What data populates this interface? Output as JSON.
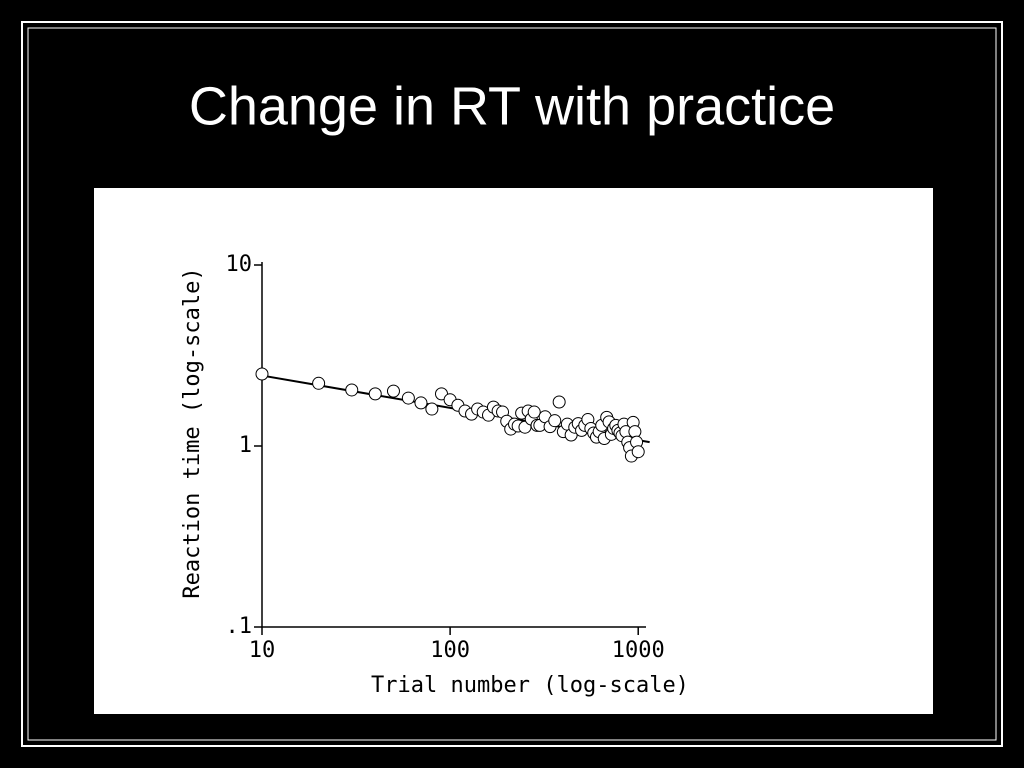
{
  "chart_data": {
    "type": "scatter",
    "title": "Change in RT with practice",
    "x_label": "Trial number (log-scale)",
    "y_label": "Reaction time (log-scale)",
    "xscale": "log",
    "yscale": "log",
    "xlim": [
      10,
      1100
    ],
    "ylim": [
      0.1,
      10
    ],
    "xticks": [
      10,
      100,
      1000
    ],
    "yticks": [
      {
        "value": 0.1,
        "label": ".1"
      },
      1,
      10
    ],
    "x": [
      10,
      20,
      30,
      40,
      50,
      60,
      70,
      80,
      90,
      100,
      110,
      120,
      130,
      140,
      150,
      160,
      170,
      180,
      190,
      200,
      210,
      220,
      230,
      240,
      250,
      260,
      270,
      280,
      290,
      300,
      320,
      340,
      360,
      380,
      400,
      420,
      440,
      460,
      480,
      500,
      520,
      540,
      560,
      580,
      600,
      620,
      640,
      660,
      680,
      700,
      720,
      740,
      760,
      780,
      800,
      820,
      840,
      860,
      880,
      900,
      920,
      940,
      960,
      980,
      1000
    ],
    "values": [
      2.5,
      2.22,
      2.04,
      1.94,
      2.01,
      1.84,
      1.73,
      1.6,
      1.94,
      1.8,
      1.68,
      1.56,
      1.5,
      1.6,
      1.54,
      1.48,
      1.64,
      1.56,
      1.54,
      1.37,
      1.24,
      1.32,
      1.29,
      1.52,
      1.27,
      1.56,
      1.41,
      1.54,
      1.3,
      1.3,
      1.45,
      1.28,
      1.38,
      1.75,
      1.2,
      1.32,
      1.15,
      1.27,
      1.33,
      1.22,
      1.3,
      1.4,
      1.25,
      1.18,
      1.12,
      1.2,
      1.3,
      1.1,
      1.44,
      1.36,
      1.16,
      1.25,
      1.3,
      1.22,
      1.18,
      1.14,
      1.32,
      1.2,
      1.05,
      0.98,
      0.88,
      1.35,
      1.2,
      1.05,
      0.93
    ],
    "trend": {
      "x": [
        10,
        1150
      ],
      "y": [
        2.45,
        1.05
      ]
    }
  }
}
